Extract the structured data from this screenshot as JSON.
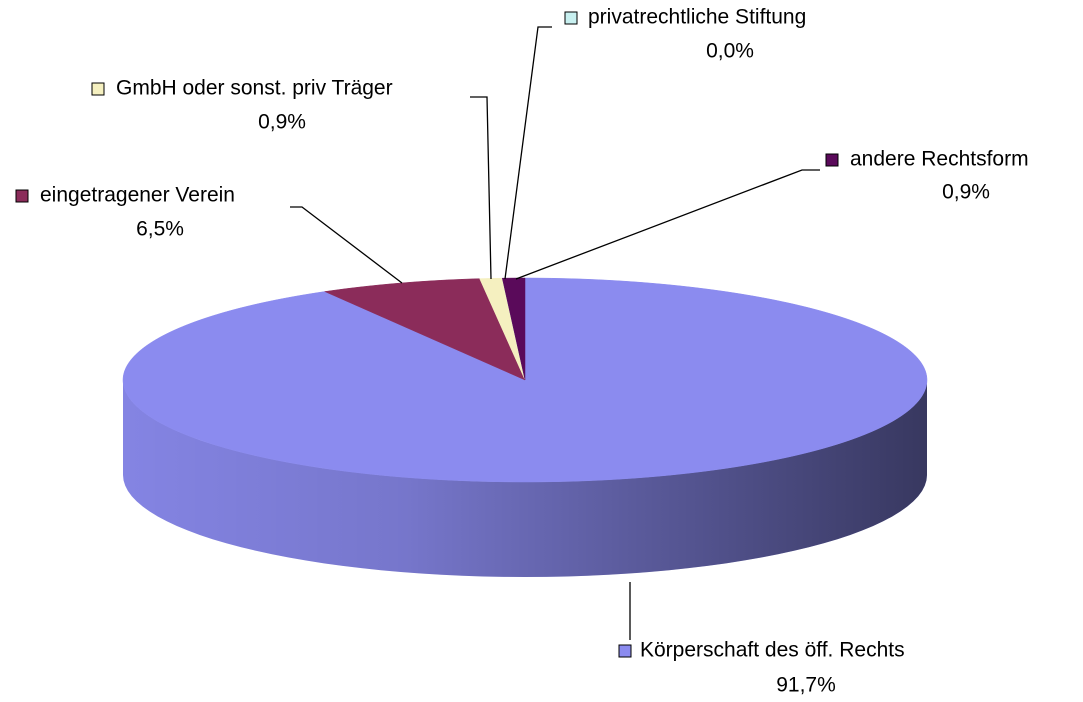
{
  "chart_data": {
    "type": "pie",
    "categories": [
      "Körperschaft des öff. Rechts",
      "eingetragener Verein",
      "GmbH oder sonst. priv Träger",
      "privatrechtliche Stiftung",
      "andere Rechtsform"
    ],
    "values": [
      91.7,
      6.5,
      0.9,
      0.0,
      0.9
    ],
    "value_labels": [
      "91,7%",
      "6,5%",
      "0,9%",
      "0,0%",
      "0,9%"
    ],
    "colors": [
      "#8b8bef",
      "#8b2c5a",
      "#f5f0c0",
      "#c8f0f0",
      "#5a0a5a"
    ]
  }
}
